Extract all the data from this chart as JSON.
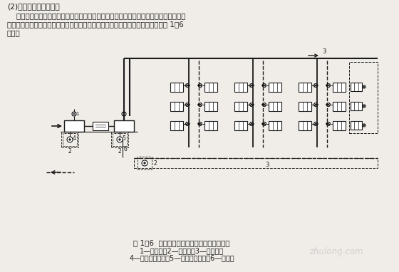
{
  "bg_color": "#f0ede8",
  "text_color": "#1a1a1a",
  "line_color": "#1a1a1a",
  "title_line1": "(2)高压蒸汽采暖系统。",
  "body_line1": "    高压蒸汽采暖系统比低压蒸汽采暖系统供气压力高，流速大，作用半径大，散热器表面",
  "body_line2": "温度高，凝结水温度高。多用于工厂里的采暖。高压蒸汽采暖系统常用的形式如图 1－6",
  "body_line3": "所示。",
  "caption_line1": "图 1－6  双管上分式高压蒸汽采暖系统示意图",
  "caption_line2": "1—减压阀；2—疏水器；3—伸缩器；",
  "caption_line3": "4—生产用分汽缸；5—采暖用分汽缸；6—放气管",
  "watermark": "zhulong.com"
}
